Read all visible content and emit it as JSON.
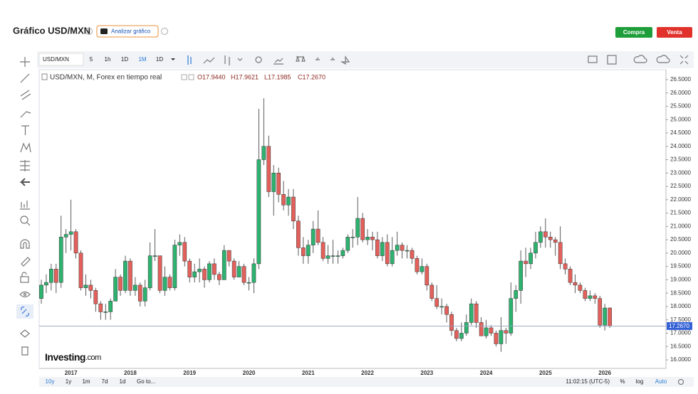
{
  "ui": {
    "title": "Gráfico USD/MXN",
    "analyze": "Analizar gráfico",
    "buy": "Compra",
    "sell": "Venta",
    "symbol": "USD/MXN",
    "intervals": [
      "5",
      "1h",
      "1D",
      "1M",
      "1D"
    ],
    "legend_symbol": "USD/MXN, M, Forex en tiempo real",
    "legend_o": "O17.9440",
    "legend_h": "H17.9621",
    "legend_l": "L17.1985",
    "legend_c": "C17.2670",
    "ranges": [
      "10y",
      "1y",
      "1m",
      "7d",
      "1d",
      "Go to..."
    ],
    "clock": "11:02:15 (UTC-5)",
    "percent": "%",
    "log": "log",
    "auto": "Auto",
    "watermark": "Investing",
    "watermark_suffix": ".com",
    "last_price_label": "17.2670"
  },
  "chart_data": {
    "type": "candlestick",
    "categories": [
      null,
      null,
      null,
      null,
      null,
      null,
      "2017",
      null,
      null,
      null,
      null,
      null,
      null,
      null,
      null,
      null,
      null,
      null,
      "2018",
      null,
      null,
      null,
      null,
      null,
      null,
      null,
      null,
      null,
      null,
      null,
      "2019",
      null,
      null,
      null,
      null,
      null,
      null,
      null,
      null,
      null,
      null,
      null,
      "2020",
      null,
      null,
      null,
      null,
      null,
      null,
      null,
      null,
      null,
      null,
      null,
      "2021",
      null,
      null,
      null,
      null,
      null,
      null,
      null,
      null,
      null,
      null,
      null,
      "2022",
      null,
      null,
      null,
      null,
      null,
      null,
      null,
      null,
      null,
      null,
      null,
      "2023",
      null,
      null,
      null,
      null,
      null,
      null,
      null,
      null,
      null,
      null,
      null,
      "2024",
      null,
      null,
      null,
      null,
      null,
      null,
      null,
      null,
      null,
      null,
      null,
      "2025",
      null,
      null,
      null,
      null,
      null,
      null,
      null,
      null,
      null,
      null,
      null,
      "2026",
      null
    ],
    "open": [
      18.3,
      18.8,
      18.9,
      19.4,
      18.9,
      20.6,
      20.7,
      20.8,
      20.0,
      18.7,
      18.8,
      18.6,
      18.1,
      17.8,
      17.8,
      18.2,
      19.1,
      18.6,
      19.7,
      18.6,
      18.8,
      18.2,
      18.7,
      19.9,
      19.9,
      18.6,
      19.1,
      18.7,
      20.3,
      20.4,
      19.7,
      19.1,
      19.3,
      19.4,
      19.0,
      19.6,
      19.2,
      19.0,
      20.1,
      19.7,
      19.1,
      19.5,
      18.9,
      18.9,
      19.6,
      23.5,
      24.0,
      22.3,
      23.0,
      22.2,
      21.8,
      22.1,
      21.2,
      20.2,
      19.9,
      20.3,
      20.9,
      20.4,
      19.8,
      19.9,
      19.9,
      19.9,
      20.1,
      20.6,
      20.6,
      21.3,
      20.5,
      20.6,
      20.5,
      19.9,
      20.4,
      19.6,
      20.1,
      20.3,
      20.1,
      20.1,
      19.8,
      19.3,
      19.5,
      18.8,
      18.3,
      18.0,
      18.0,
      17.7,
      17.1,
      16.8,
      17.0,
      17.4,
      18.1,
      17.4,
      16.9,
      17.2,
      17.0,
      16.6,
      17.1,
      17.0,
      18.3,
      18.6,
      19.7,
      19.6,
      20.0,
      20.4,
      20.8,
      20.6,
      20.5,
      20.4,
      19.6,
      19.4,
      18.9,
      18.8,
      18.6,
      18.3,
      18.4,
      18.3,
      17.3,
      17.944
    ],
    "high": [
      19.0,
      19.2,
      19.6,
      19.6,
      21.4,
      20.9,
      22.0,
      20.9,
      20.1,
      19.2,
      19.0,
      18.7,
      18.2,
      18.1,
      18.3,
      19.4,
      19.2,
      19.9,
      19.8,
      19.1,
      18.9,
      19.0,
      20.4,
      20.9,
      19.9,
      19.5,
      19.2,
      20.5,
      20.7,
      20.6,
      19.8,
      19.6,
      19.8,
      19.5,
      19.7,
      19.8,
      19.3,
      20.3,
      20.0,
      19.8,
      19.7,
      19.6,
      19.1,
      19.8,
      25.4,
      25.8,
      24.4,
      23.3,
      23.2,
      22.7,
      22.4,
      22.4,
      21.4,
      20.6,
      20.5,
      21.2,
      21.6,
      20.6,
      20.3,
      20.5,
      20.1,
      20.2,
      20.7,
      20.9,
      22.1,
      21.5,
      20.9,
      20.8,
      20.8,
      20.6,
      20.7,
      20.6,
      20.8,
      20.4,
      20.3,
      20.2,
      19.9,
      19.8,
      19.6,
      18.9,
      18.8,
      18.3,
      18.1,
      17.8,
      17.2,
      17.4,
      17.7,
      18.3,
      18.2,
      17.6,
      17.5,
      17.3,
      17.1,
      17.6,
      17.2,
      18.9,
      18.8,
      20.1,
      20.2,
      20.2,
      20.8,
      21.0,
      21.3,
      20.8,
      20.6,
      21.0,
      19.8,
      19.5,
      19.2,
      18.9,
      18.7,
      18.6,
      18.5,
      18.4,
      18.1,
      17.9621
    ],
    "low": [
      18.1,
      18.5,
      18.6,
      18.5,
      18.7,
      20.0,
      20.1,
      19.8,
      18.6,
      18.4,
      18.3,
      17.8,
      17.5,
      17.5,
      17.5,
      18.2,
      18.4,
      18.5,
      18.4,
      18.4,
      18.0,
      18.0,
      18.6,
      19.7,
      18.5,
      18.4,
      18.6,
      18.6,
      19.9,
      19.5,
      18.9,
      18.9,
      18.9,
      18.7,
      18.9,
      19.0,
      18.8,
      19.0,
      19.5,
      19.0,
      19.1,
      18.8,
      18.6,
      18.5,
      19.4,
      23.3,
      22.1,
      21.4,
      21.9,
      21.6,
      21.4,
      20.9,
      19.9,
      19.6,
      19.6,
      20.0,
      20.3,
      19.7,
      19.6,
      19.6,
      19.6,
      19.8,
      20.0,
      20.2,
      20.3,
      20.4,
      20.3,
      20.1,
      19.8,
      19.7,
      19.5,
      19.5,
      19.9,
      19.8,
      19.8,
      19.6,
      19.2,
      19.2,
      18.6,
      18.2,
      17.9,
      17.7,
      17.4,
      16.9,
      16.7,
      16.7,
      16.9,
      17.3,
      17.2,
      16.9,
      16.8,
      16.9,
      16.5,
      16.3,
      16.6,
      16.9,
      17.8,
      18.1,
      19.1,
      19.4,
      19.8,
      20.2,
      20.2,
      20.2,
      19.9,
      19.4,
      19.2,
      18.8,
      18.5,
      18.5,
      18.2,
      18.2,
      18.1,
      17.2,
      17.1,
      17.1985
    ],
    "close": [
      18.8,
      18.9,
      19.4,
      18.9,
      20.6,
      20.7,
      20.8,
      20.0,
      18.7,
      18.8,
      18.6,
      18.1,
      17.8,
      17.8,
      18.2,
      19.1,
      18.6,
      19.7,
      18.6,
      18.8,
      18.2,
      18.7,
      19.9,
      19.9,
      18.6,
      19.1,
      18.7,
      20.3,
      20.4,
      19.7,
      19.1,
      19.3,
      19.4,
      19.0,
      19.6,
      19.2,
      19.0,
      20.1,
      19.7,
      19.1,
      19.5,
      18.9,
      18.9,
      19.6,
      23.5,
      24.0,
      22.3,
      23.0,
      22.2,
      21.8,
      22.1,
      21.2,
      20.2,
      19.9,
      20.3,
      20.9,
      20.4,
      19.8,
      19.9,
      19.9,
      19.9,
      20.1,
      20.6,
      20.6,
      21.3,
      20.5,
      20.6,
      20.5,
      19.9,
      20.4,
      19.6,
      20.1,
      20.3,
      20.1,
      20.1,
      19.8,
      19.3,
      19.5,
      18.8,
      18.3,
      18.0,
      18.0,
      17.7,
      17.1,
      16.8,
      17.0,
      17.4,
      18.1,
      17.4,
      16.9,
      17.2,
      17.0,
      16.6,
      17.1,
      17.0,
      18.3,
      18.6,
      19.7,
      19.6,
      20.0,
      20.4,
      20.8,
      20.6,
      20.5,
      20.4,
      19.6,
      19.4,
      18.9,
      18.8,
      18.6,
      18.3,
      18.4,
      18.3,
      17.3,
      17.944,
      17.267
    ],
    "up_color": "#2db36f",
    "down_color": "#e4605b",
    "ylim": [
      15.68,
      26.87
    ],
    "yticks": [
      {
        "value": 16,
        "label": "16.0000"
      },
      {
        "value": 16.5,
        "label": "16.5000"
      },
      {
        "value": 17,
        "label": "17.0000"
      },
      {
        "value": 17.5,
        "label": "17.5000"
      },
      {
        "value": 18,
        "label": "18.0000"
      },
      {
        "value": 18.5,
        "label": "18.5000"
      },
      {
        "value": 19,
        "label": "19.0000"
      },
      {
        "value": 19.5,
        "label": "19.5000"
      },
      {
        "value": 20,
        "label": "20.0000"
      },
      {
        "value": 20.5,
        "label": "20.5000"
      },
      {
        "value": 21,
        "label": "21.0000"
      },
      {
        "value": 21.5,
        "label": "21.5000"
      },
      {
        "value": 22,
        "label": "22.0000"
      },
      {
        "value": 22.5,
        "label": "22.5000"
      },
      {
        "value": 23,
        "label": "23.0000"
      },
      {
        "value": 23.5,
        "label": "23.5000"
      },
      {
        "value": 24,
        "label": "24.0000"
      },
      {
        "value": 24.5,
        "label": "24.5000"
      },
      {
        "value": 25,
        "label": "25.0000"
      },
      {
        "value": 25.5,
        "label": "25.5000"
      },
      {
        "value": 26,
        "label": "26.0000"
      },
      {
        "value": 26.5,
        "label": "26.5000"
      }
    ],
    "grid": false
  }
}
